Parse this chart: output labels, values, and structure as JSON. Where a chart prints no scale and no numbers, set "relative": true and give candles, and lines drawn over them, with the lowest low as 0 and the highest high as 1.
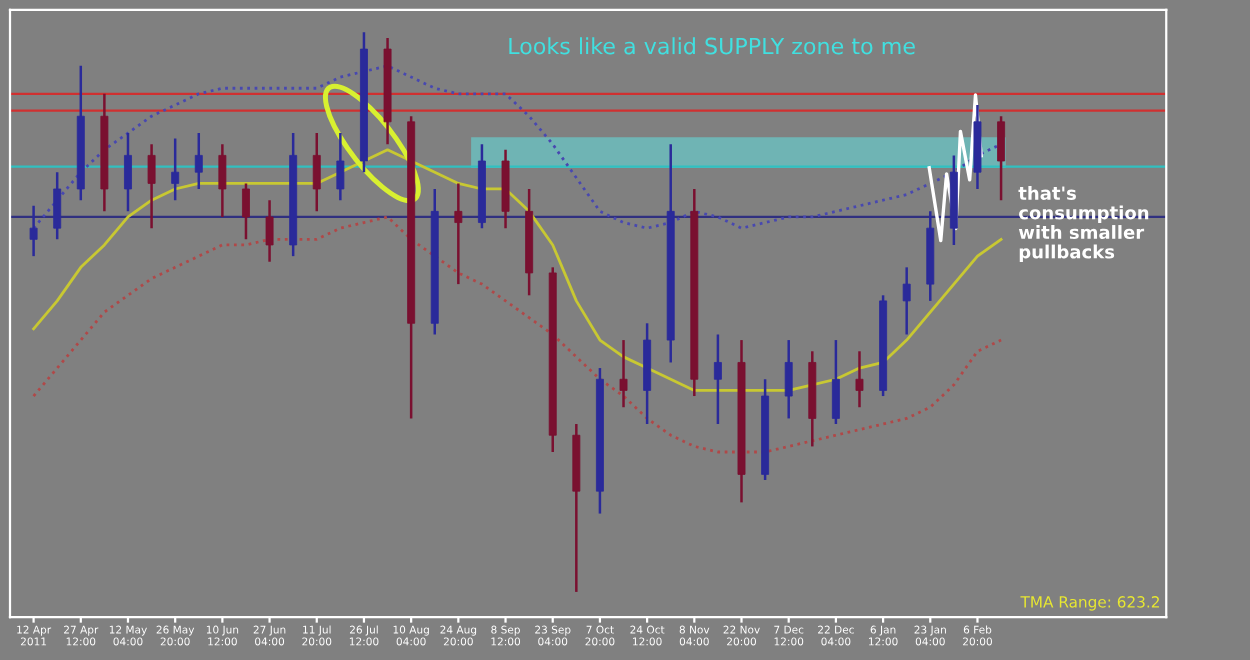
{
  "chart_data": {
    "type": "candlestick",
    "relative": true,
    "legend": false,
    "grid": false,
    "tick_labels": "x",
    "categories": [
      "12 Apr 2011",
      null,
      "27 Apr 12:00",
      null,
      "12 May 04:00",
      null,
      "26 May 20:00",
      null,
      "10 Jun 12:00",
      null,
      "27 Jun 04:00",
      null,
      "11 Jul 20:00",
      null,
      "26 Jul 12:00",
      null,
      "10 Aug 04:00",
      null,
      "24 Aug 20:00",
      null,
      "8 Sep 12:00",
      null,
      "23 Sep 04:00",
      null,
      "7 Oct 20:00",
      null,
      "24 Oct 12:00",
      null,
      "8 Nov 04:00",
      null,
      "22 Nov 20:00",
      null,
      "7 Dec 12:00",
      null,
      "22 Dec 04:00",
      null,
      "6 Jan 12:00",
      null,
      "23 Jan 04:00",
      null,
      "6 Feb 20:00",
      null
    ],
    "series": [
      {
        "type": "line",
        "color": "#c8c832",
        "line_style": "solid",
        "values": [
          0.47,
          0.52,
          0.58,
          0.62,
          0.67,
          0.7,
          0.72,
          0.73,
          0.73,
          0.73,
          0.73,
          0.73,
          0.73,
          0.75,
          0.77,
          0.79,
          0.77,
          0.75,
          0.73,
          0.72,
          0.72,
          0.68,
          0.62,
          0.52,
          0.45,
          0.42,
          0.4,
          0.38,
          0.36,
          0.36,
          0.36,
          0.36,
          0.36,
          0.37,
          0.38,
          0.4,
          0.41,
          0.45,
          0.5,
          0.55,
          0.6,
          0.63
        ]
      },
      {
        "type": "line",
        "color": "#4848b0",
        "line_style": "dotted",
        "values": [
          0.65,
          0.7,
          0.75,
          0.79,
          0.82,
          0.85,
          0.87,
          0.89,
          0.9,
          0.9,
          0.9,
          0.9,
          0.9,
          0.92,
          0.93,
          0.94,
          0.92,
          0.9,
          0.89,
          0.89,
          0.89,
          0.85,
          0.8,
          0.74,
          0.68,
          0.66,
          0.65,
          0.66,
          0.68,
          0.67,
          0.65,
          0.66,
          0.67,
          0.67,
          0.68,
          0.69,
          0.7,
          0.71,
          0.73,
          0.75,
          0.78,
          0.8
        ]
      },
      {
        "type": "line",
        "color": "#b04848",
        "line_style": "dotted",
        "values": [
          0.35,
          0.4,
          0.45,
          0.5,
          0.53,
          0.56,
          0.58,
          0.6,
          0.62,
          0.62,
          0.63,
          0.63,
          0.63,
          0.65,
          0.66,
          0.67,
          0.63,
          0.6,
          0.57,
          0.55,
          0.52,
          0.49,
          0.46,
          0.42,
          0.38,
          0.35,
          0.31,
          0.28,
          0.26,
          0.25,
          0.25,
          0.25,
          0.26,
          0.27,
          0.28,
          0.29,
          0.3,
          0.31,
          0.33,
          0.37,
          0.43,
          0.45
        ]
      },
      {
        "colors": [
          "#2a2a9a",
          "#2a2a9a",
          "#2a2a9a",
          "#7a1030",
          "#2a2a9a",
          "#7a1030",
          "#2a2a9a",
          "#2a2a9a",
          "#7a1030",
          "#7a1030",
          "#7a1030",
          "#2a2a9a",
          "#7a1030",
          "#2a2a9a",
          "#2a2a9a",
          "#7a1030",
          "#7a1030",
          "#2a2a9a",
          "#7a1030",
          "#2a2a9a",
          "#7a1030",
          "#7a1030",
          "#7a1030",
          "#7a1030",
          "#2a2a9a",
          "#7a1030",
          "#2a2a9a",
          "#2a2a9a",
          "#7a1030",
          "#2a2a9a",
          "#7a1030",
          "#2a2a9a",
          "#2a2a9a",
          "#7a1030",
          "#2a2a9a",
          "#7a1030",
          "#2a2a9a",
          "#2a2a9a",
          "#2a2a9a",
          "#2a2a9a",
          "#2a2a9a",
          "#7a1030"
        ],
        "ohlc": [
          [
            0.63,
            0.69,
            0.6,
            0.65
          ],
          [
            0.65,
            0.75,
            0.63,
            0.72
          ],
          [
            0.72,
            0.94,
            0.7,
            0.85
          ],
          [
            0.85,
            0.89,
            0.68,
            0.72
          ],
          [
            0.72,
            0.82,
            0.68,
            0.78
          ],
          [
            0.78,
            0.8,
            0.65,
            0.73
          ],
          [
            0.73,
            0.81,
            0.7,
            0.75
          ],
          [
            0.75,
            0.82,
            0.72,
            0.78
          ],
          [
            0.78,
            0.8,
            0.67,
            0.72
          ],
          [
            0.72,
            0.73,
            0.63,
            0.67
          ],
          [
            0.67,
            0.7,
            0.59,
            0.62
          ],
          [
            0.62,
            0.82,
            0.6,
            0.78
          ],
          [
            0.78,
            0.82,
            0.68,
            0.72
          ],
          [
            0.72,
            0.82,
            0.7,
            0.77
          ],
          [
            0.77,
            1.0,
            0.75,
            0.97
          ],
          [
            0.97,
            0.99,
            0.8,
            0.84
          ],
          [
            0.84,
            0.85,
            0.31,
            0.48
          ],
          [
            0.48,
            0.72,
            0.46,
            0.68
          ],
          [
            0.68,
            0.73,
            0.55,
            0.66
          ],
          [
            0.66,
            0.8,
            0.65,
            0.77
          ],
          [
            0.77,
            0.79,
            0.65,
            0.68
          ],
          [
            0.68,
            0.72,
            0.53,
            0.57
          ],
          [
            0.57,
            0.58,
            0.25,
            0.28
          ],
          [
            0.28,
            0.3,
            0,
            0.18
          ],
          [
            0.18,
            0.4,
            0.14,
            0.38
          ],
          [
            0.38,
            0.45,
            0.33,
            0.36
          ],
          [
            0.36,
            0.48,
            0.3,
            0.45
          ],
          [
            0.45,
            0.8,
            0.41,
            0.68
          ],
          [
            0.68,
            0.72,
            0.35,
            0.38
          ],
          [
            0.38,
            0.46,
            0.3,
            0.41
          ],
          [
            0.41,
            0.45,
            0.16,
            0.21
          ],
          [
            0.21,
            0.38,
            0.2,
            0.35
          ],
          [
            0.35,
            0.45,
            0.31,
            0.41
          ],
          [
            0.41,
            0.43,
            0.26,
            0.31
          ],
          [
            0.31,
            0.45,
            0.3,
            0.38
          ],
          [
            0.38,
            0.43,
            0.33,
            0.36
          ],
          [
            0.36,
            0.53,
            0.35,
            0.52
          ],
          [
            0.52,
            0.58,
            0.46,
            0.55
          ],
          [
            0.55,
            0.68,
            0.52,
            0.65
          ],
          [
            0.65,
            0.78,
            0.62,
            0.75
          ],
          [
            0.75,
            0.87,
            0.72,
            0.84
          ],
          [
            0.84,
            0.85,
            0.7,
            0.77
          ]
        ]
      }
    ],
    "ref_lines": [
      {
        "axis": "y",
        "value": 0.89,
        "color": "#d03030"
      },
      {
        "axis": "y",
        "value": 0.86,
        "color": "#d03030"
      },
      {
        "axis": "y",
        "value": 0.76,
        "color": "#30c0c0"
      },
      {
        "axis": "y",
        "value": 0.67,
        "color": "#303080"
      }
    ],
    "bands": [
      {
        "axis": "y",
        "from": 0.76,
        "to": 0.81,
        "color": "#6fb4b4"
      }
    ],
    "annotations": [
      "Looks like a valid SUPPLY zone to me",
      "that's\nconsumption\nwith smaller\npullbacks",
      "TMA Range: 623.2"
    ]
  }
}
